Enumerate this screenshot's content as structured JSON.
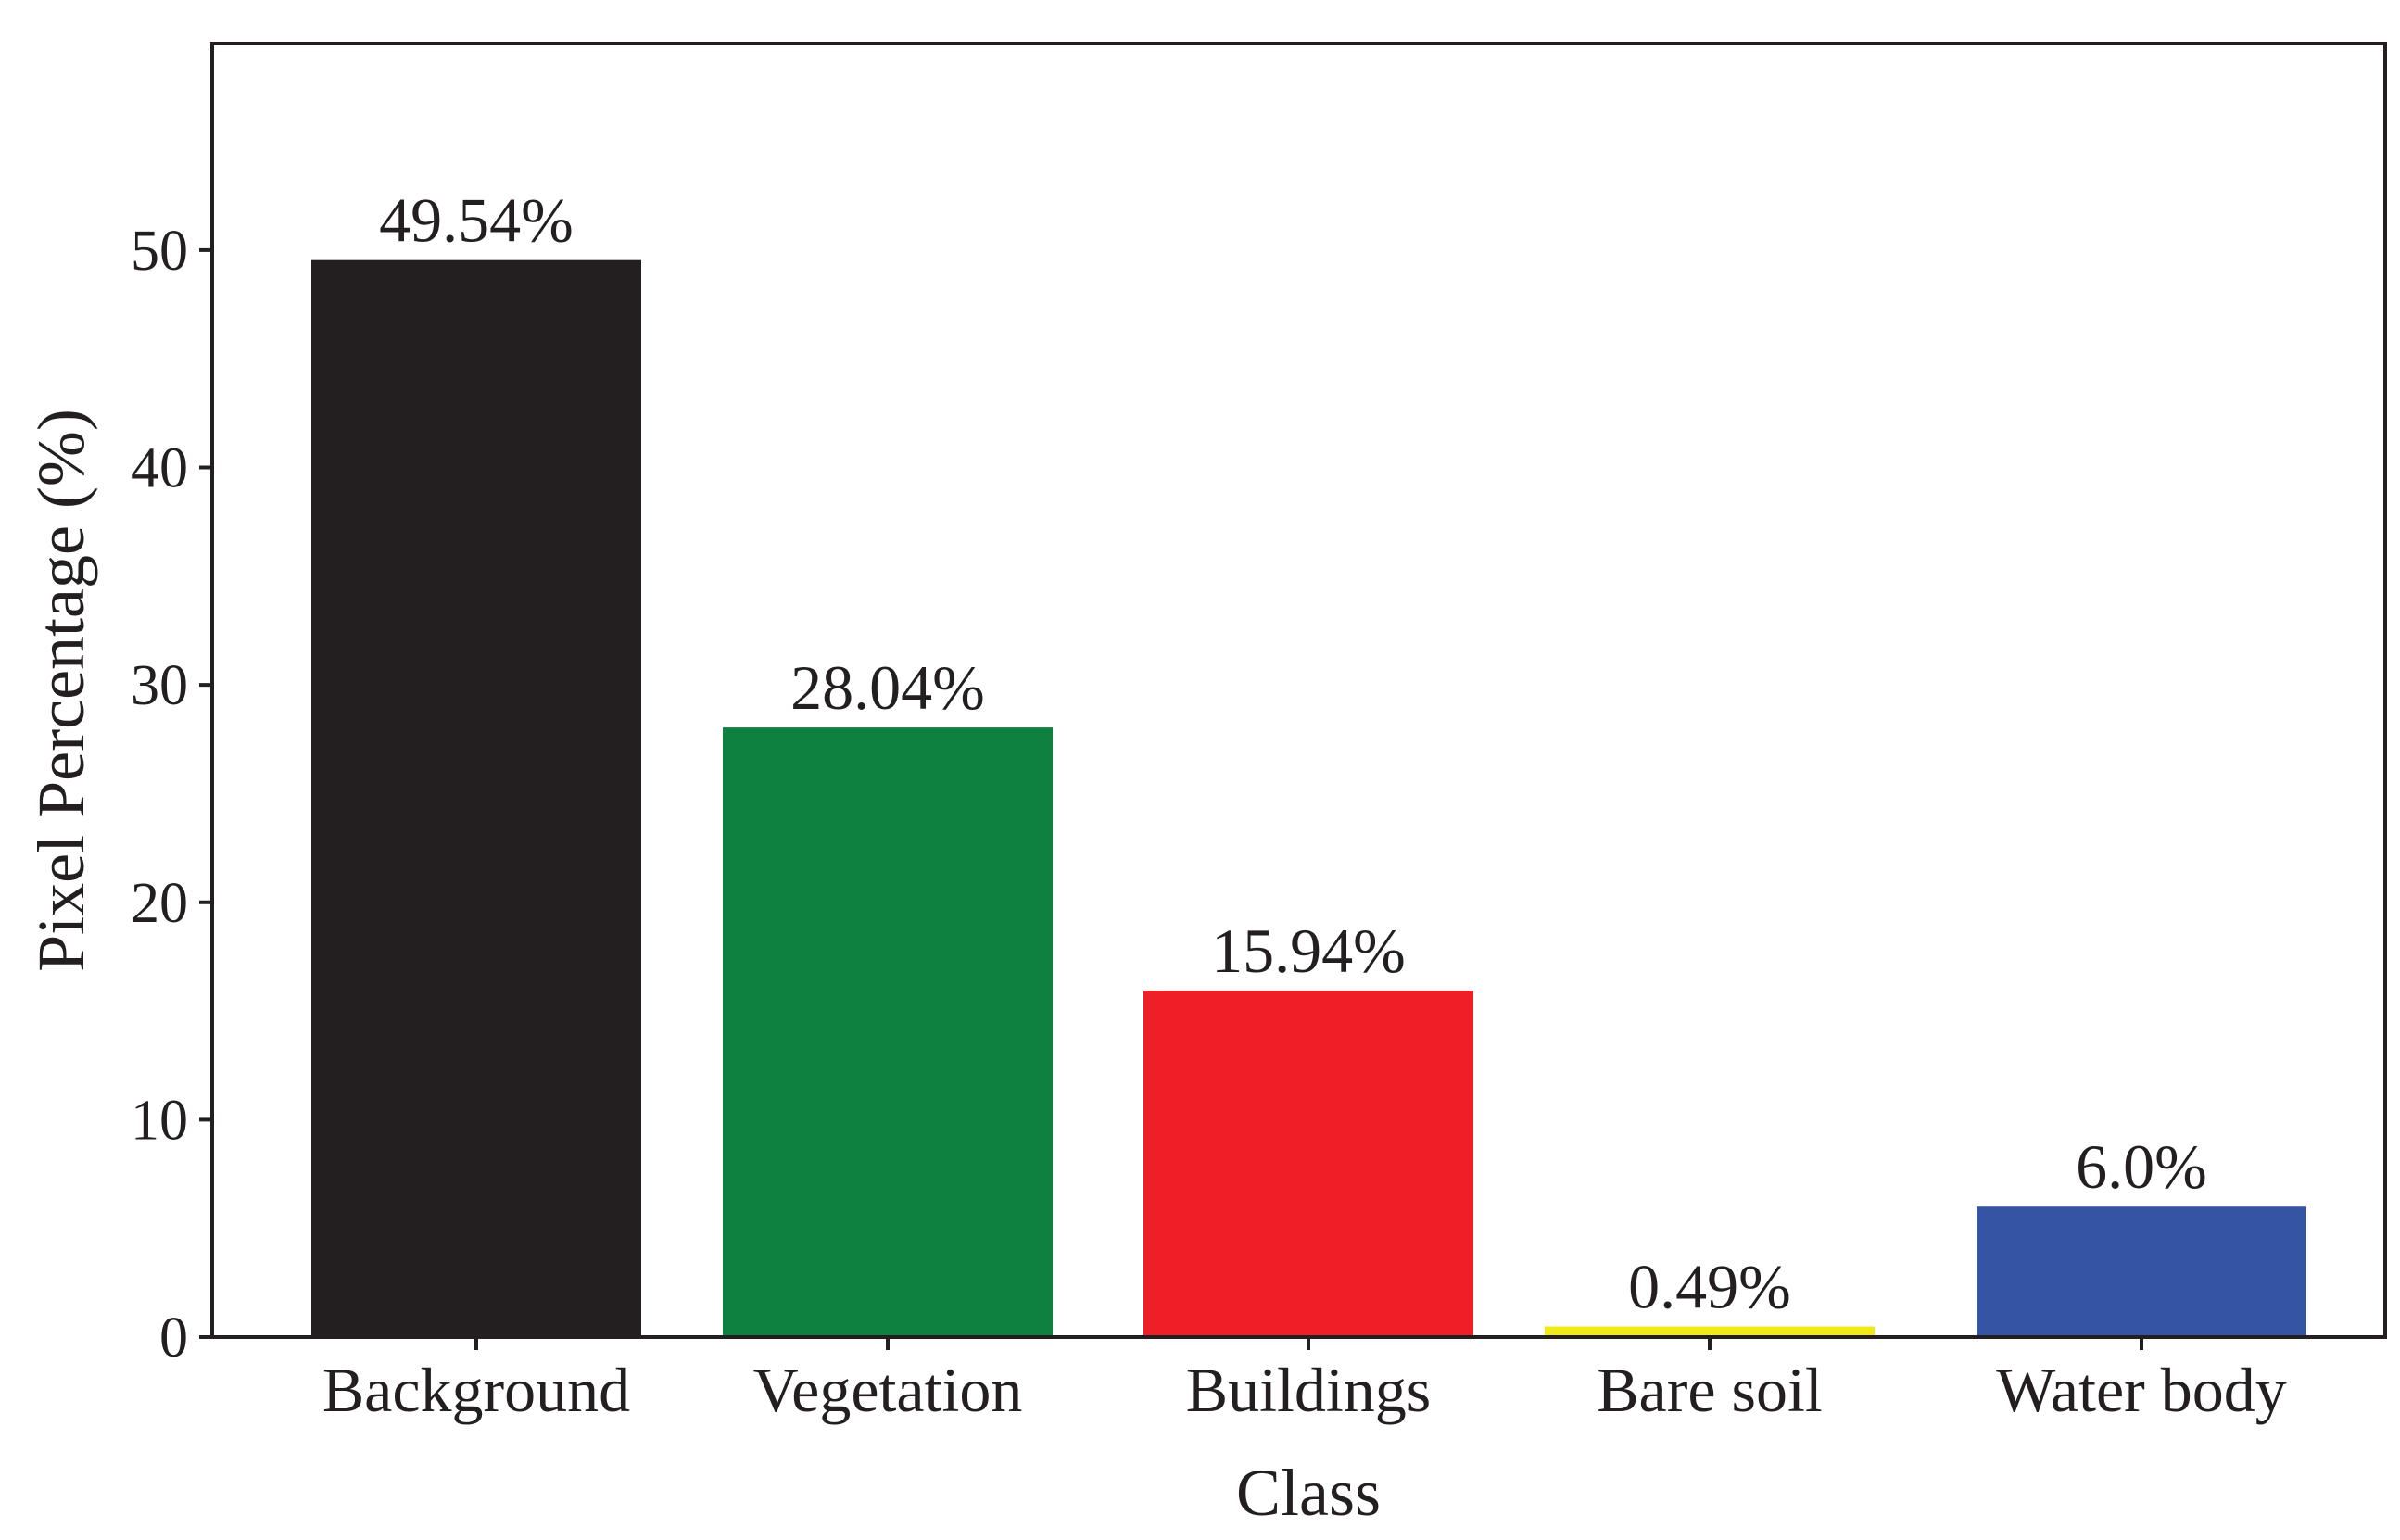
{
  "chart_data": {
    "type": "bar",
    "title": "",
    "xlabel": "Class",
    "ylabel": "Pixel Percentage (%)",
    "categories": [
      "Background",
      "Vegetation",
      "Buildings",
      "Bare soil",
      "Water body"
    ],
    "values": [
      49.54,
      28.04,
      15.94,
      0.49,
      6.0
    ],
    "data_labels": [
      "49.54%",
      "28.04%",
      "15.94%",
      "0.49%",
      "6.0%"
    ],
    "colors": [
      "#231f20",
      "#0e8040",
      "#ee1f26",
      "#f0ea18",
      "#3654a4"
    ],
    "ylim": [
      0,
      59.5
    ],
    "yticks": [
      0,
      10,
      20,
      30,
      40,
      50
    ],
    "grid": false,
    "legend": "none"
  }
}
